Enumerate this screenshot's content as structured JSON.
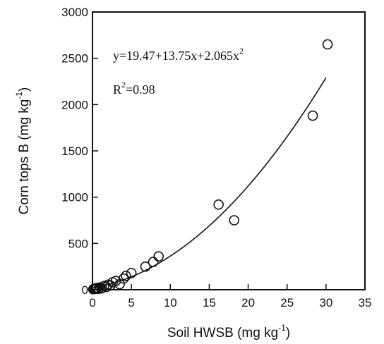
{
  "chart_data": {
    "type": "scatter",
    "xlabel": "Soil HWSB (mg kg",
    "xlabel_sup": "-1",
    "xlabel_close": ")",
    "ylabel": "Corn tops B (mg kg",
    "ylabel_sup": "-1",
    "ylabel_close": ")",
    "xlim": [
      0,
      35
    ],
    "ylim": [
      0,
      3000
    ],
    "xticks": [
      0,
      5,
      10,
      15,
      20,
      25,
      30,
      35
    ],
    "yticks": [
      0,
      500,
      1000,
      1500,
      2000,
      2500,
      3000
    ],
    "grid": false,
    "legend": "none",
    "equation": {
      "main": "y=19.47+13.75x+2.065x",
      "sup": "2"
    },
    "r2": {
      "prefix": "R",
      "sup": "2",
      "value": "=0.98"
    },
    "fit": {
      "model": "quadratic",
      "a": 19.47,
      "b": 13.75,
      "c": 2.065,
      "x_range": [
        0,
        30
      ]
    },
    "points": [
      {
        "x": 0.1,
        "y": 5
      },
      {
        "x": 0.2,
        "y": 10
      },
      {
        "x": 0.3,
        "y": 8
      },
      {
        "x": 0.4,
        "y": 15
      },
      {
        "x": 0.5,
        "y": 12
      },
      {
        "x": 0.6,
        "y": 20
      },
      {
        "x": 0.8,
        "y": 10
      },
      {
        "x": 1.0,
        "y": 25
      },
      {
        "x": 1.2,
        "y": 15
      },
      {
        "x": 1.5,
        "y": 40
      },
      {
        "x": 1.8,
        "y": 30
      },
      {
        "x": 2.0,
        "y": 55
      },
      {
        "x": 2.3,
        "y": 45
      },
      {
        "x": 2.6,
        "y": 80
      },
      {
        "x": 3.0,
        "y": 95
      },
      {
        "x": 3.5,
        "y": 60
      },
      {
        "x": 4.0,
        "y": 120
      },
      {
        "x": 4.3,
        "y": 150
      },
      {
        "x": 5.0,
        "y": 180
      },
      {
        "x": 6.8,
        "y": 250
      },
      {
        "x": 7.8,
        "y": 300
      },
      {
        "x": 8.5,
        "y": 360
      },
      {
        "x": 16.2,
        "y": 920
      },
      {
        "x": 18.2,
        "y": 750
      },
      {
        "x": 28.3,
        "y": 1880
      },
      {
        "x": 30.2,
        "y": 2650
      }
    ]
  }
}
